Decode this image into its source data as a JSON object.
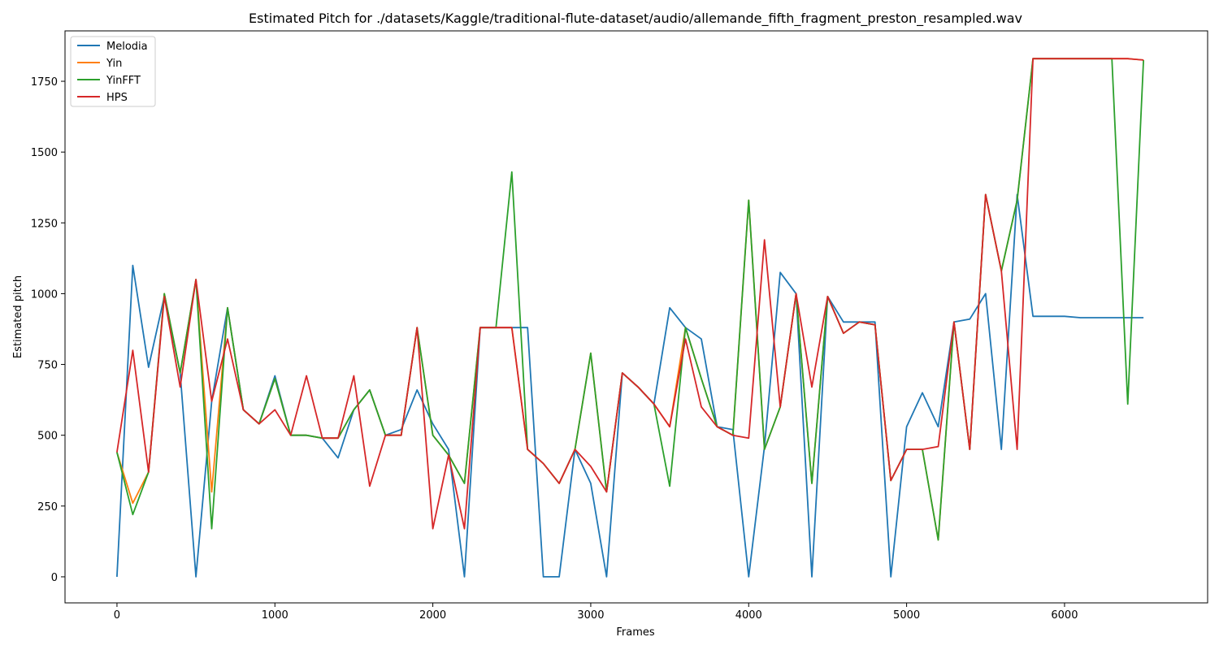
{
  "chart_data": {
    "type": "line",
    "title": "Estimated Pitch for ./datasets/Kaggle/traditional-flute-dataset/audio/allemande_fifth_fragment_preston_resampled.wav",
    "x_label": "Frames",
    "y_label": "Estimated pitch",
    "x": [
      0,
      100,
      200,
      300,
      400,
      500,
      600,
      700,
      800,
      900,
      1000,
      1100,
      1200,
      1300,
      1400,
      1500,
      1600,
      1700,
      1800,
      1900,
      2000,
      2100,
      2200,
      2300,
      2400,
      2500,
      2600,
      2700,
      2800,
      2900,
      3000,
      3100,
      3200,
      3300,
      3400,
      3500,
      3600,
      3700,
      3800,
      3900,
      4000,
      4100,
      4200,
      4300,
      4400,
      4500,
      4600,
      4700,
      4800,
      4900,
      5000,
      5100,
      5200,
      5300,
      5400,
      5500,
      5600,
      5700,
      5800,
      5900,
      6000,
      6100,
      6200,
      6300,
      6400,
      6500
    ],
    "series": [
      {
        "name": "Melodia",
        "color": "#1f77b4",
        "values": [
          0,
          1100,
          740,
          990,
          720,
          0,
          620,
          950,
          590,
          540,
          710,
          500,
          500,
          490,
          420,
          590,
          660,
          500,
          520,
          660,
          540,
          450,
          0,
          880,
          880,
          880,
          880,
          0,
          0,
          450,
          330,
          0,
          720,
          670,
          610,
          950,
          880,
          840,
          530,
          520,
          0,
          460,
          1075,
          1000,
          0,
          990,
          900,
          900,
          900,
          0,
          530,
          650,
          530,
          900,
          910,
          1000,
          450,
          1350,
          920,
          920,
          920,
          915,
          915,
          915,
          915,
          915
        ]
      },
      {
        "name": "Yin",
        "color": "#ff7f0e",
        "values": [
          440,
          260,
          370,
          1000,
          720,
          1050,
          300,
          950,
          590,
          540,
          700,
          500,
          500,
          490,
          490,
          590,
          660,
          500,
          500,
          880,
          500,
          430,
          330,
          880,
          880,
          880,
          450,
          400,
          330,
          450,
          790,
          300,
          720,
          670,
          610,
          530,
          880,
          700,
          530,
          500,
          1330,
          450,
          600,
          1000,
          330,
          990,
          860,
          900,
          890,
          340,
          450,
          450,
          130,
          900,
          450,
          1350,
          1080,
          1330,
          1830,
          1830,
          1830,
          1830,
          1830,
          1830,
          1830,
          1825
        ]
      },
      {
        "name": "YinFFT",
        "color": "#2ca02c",
        "values": [
          440,
          220,
          370,
          1000,
          720,
          1050,
          170,
          950,
          590,
          540,
          700,
          500,
          500,
          490,
          490,
          590,
          660,
          500,
          500,
          880,
          500,
          430,
          330,
          880,
          880,
          1430,
          450,
          400,
          330,
          450,
          790,
          300,
          720,
          670,
          610,
          320,
          880,
          700,
          530,
          500,
          1330,
          450,
          600,
          1000,
          330,
          990,
          860,
          900,
          890,
          340,
          450,
          450,
          130,
          900,
          450,
          1350,
          1080,
          1330,
          1830,
          1830,
          1830,
          1830,
          1830,
          1830,
          610,
          1825
        ]
      },
      {
        "name": "HPS",
        "color": "#d62728",
        "values": [
          440,
          800,
          370,
          990,
          670,
          1050,
          620,
          840,
          590,
          540,
          590,
          500,
          710,
          490,
          490,
          710,
          320,
          500,
          500,
          880,
          170,
          430,
          170,
          880,
          880,
          880,
          450,
          400,
          330,
          450,
          390,
          300,
          720,
          670,
          610,
          530,
          840,
          600,
          530,
          500,
          490,
          1190,
          600,
          1000,
          670,
          990,
          860,
          900,
          890,
          340,
          450,
          450,
          460,
          900,
          450,
          1350,
          1080,
          450,
          1830,
          1830,
          1830,
          1830,
          1830,
          1830,
          1830,
          1825
        ]
      }
    ],
    "xlim": [
      -329,
      6906
    ],
    "ylim": [
      -92,
      1928
    ],
    "xticks": [
      0,
      1000,
      2000,
      3000,
      4000,
      5000,
      6000
    ],
    "yticks": [
      0,
      250,
      500,
      750,
      1000,
      1250,
      1500,
      1750
    ],
    "legend": "upper left"
  }
}
